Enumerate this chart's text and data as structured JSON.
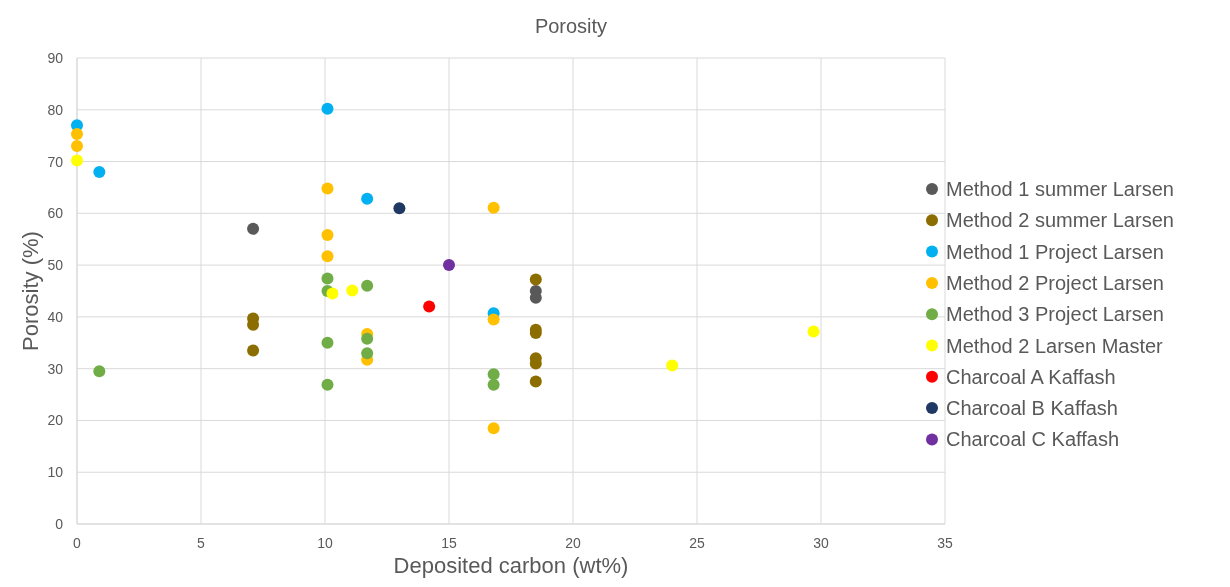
{
  "chart_data": {
    "type": "scatter",
    "title": "Porosity",
    "xlabel": "Deposited carbon (wt%)",
    "ylabel": "Porosity (%)",
    "xlim": [
      0,
      35
    ],
    "xticks": [
      0,
      5,
      10,
      15,
      20,
      25,
      30,
      35
    ],
    "ylim": [
      0,
      90
    ],
    "yticks": [
      0,
      10,
      20,
      30,
      40,
      50,
      60,
      70,
      80,
      90
    ],
    "grid": true,
    "legend": "right",
    "marker": "circle",
    "series": [
      {
        "name": "Method 1 summer Larsen",
        "color": "#595959",
        "x": [
          7.1,
          18.5,
          18.5
        ],
        "values": [
          57,
          45,
          43.7
        ]
      },
      {
        "name": "Method 2 summer Larsen",
        "color": "#8c6d00",
        "x": [
          7.1,
          7.1,
          7.1,
          18.5,
          18.5,
          18.5,
          18.5,
          18.5,
          18.5
        ],
        "values": [
          39.7,
          38.5,
          33.5,
          47.2,
          37.5,
          36.9,
          32,
          31,
          27.5
        ]
      },
      {
        "name": "Method 1 Project Larsen",
        "color": "#00b0f0",
        "x": [
          0,
          0.9,
          10.1,
          11.7,
          16.8
        ],
        "values": [
          77,
          68,
          80.2,
          62.8,
          40.7
        ]
      },
      {
        "name": "Method 2 Project Larsen",
        "color": "#ffc000",
        "x": [
          0,
          0,
          10.1,
          10.1,
          10.1,
          11.7,
          11.7,
          16.8,
          16.8,
          16.8
        ],
        "values": [
          75.3,
          73,
          64.8,
          55.8,
          51.7,
          36.7,
          31.7,
          61.1,
          39.5,
          18.5
        ]
      },
      {
        "name": "Method 3 Project Larsen",
        "color": "#70ad47",
        "x": [
          0.9,
          10.1,
          10.1,
          10.1,
          10.1,
          11.7,
          11.7,
          11.7,
          16.8,
          16.8
        ],
        "values": [
          29.5,
          47.4,
          45,
          35,
          26.9,
          46,
          35.8,
          33,
          28.9,
          26.9
        ]
      },
      {
        "name": "Method 2 Larsen Master",
        "color": "#ffff00",
        "x": [
          0,
          10.3,
          11.1,
          24,
          29.7
        ],
        "values": [
          70.2,
          44.5,
          45.1,
          30.6,
          37.2
        ]
      },
      {
        "name": "Charcoal A Kaffash",
        "color": "#ff0000",
        "x": [
          14.2
        ],
        "values": [
          42
        ]
      },
      {
        "name": "Charcoal B Kaffash",
        "color": "#203864",
        "x": [
          13
        ],
        "values": [
          61
        ]
      },
      {
        "name": "Charcoal C Kaffash",
        "color": "#7030a0",
        "x": [
          15
        ],
        "values": [
          50
        ]
      }
    ]
  }
}
